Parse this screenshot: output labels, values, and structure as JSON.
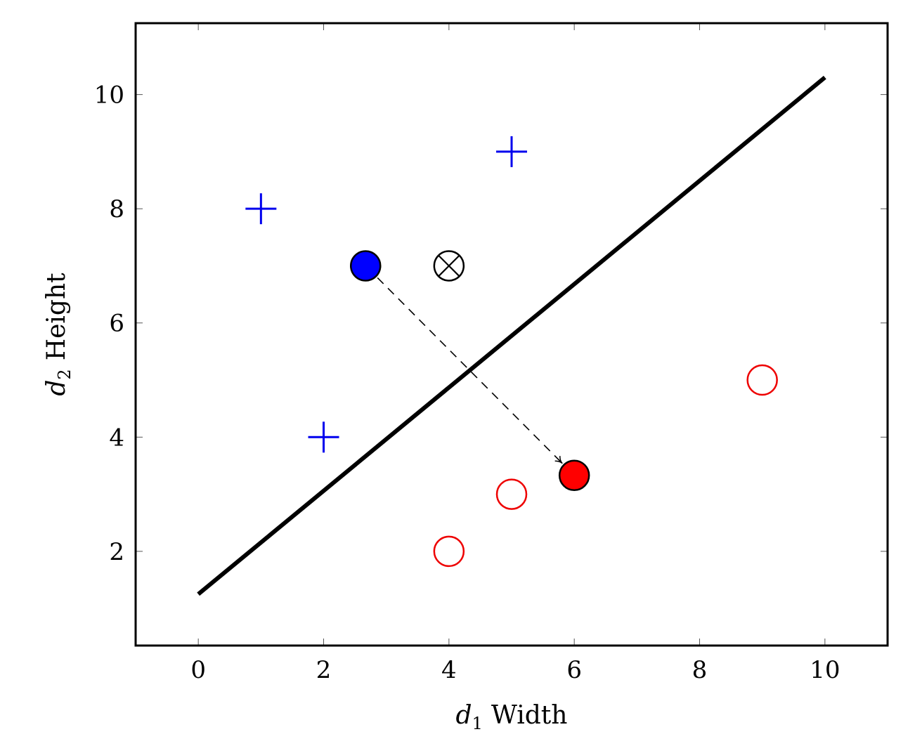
{
  "chart_data": {
    "type": "scatter",
    "title": "",
    "xlabel": {
      "symbol": "d",
      "subscript": "1",
      "text": "Width"
    },
    "ylabel": {
      "symbol": "d",
      "subscript": "2",
      "text": "Height"
    },
    "xlim": [
      -1,
      11
    ],
    "ylim": [
      0.35,
      11.25
    ],
    "xticks": [
      0,
      2,
      4,
      6,
      8,
      10
    ],
    "yticks": [
      2,
      4,
      6,
      8,
      10
    ],
    "grid": false,
    "legend": "none",
    "series": [
      {
        "marker": "plus",
        "color": "#0000ee",
        "points": [
          {
            "x": 1,
            "y": 8
          },
          {
            "x": 2,
            "y": 4
          },
          {
            "x": 5,
            "y": 9
          }
        ]
      },
      {
        "marker": "open-circle",
        "color": "#ee0000",
        "points": [
          {
            "x": 4,
            "y": 2
          },
          {
            "x": 5,
            "y": 3
          },
          {
            "x": 9,
            "y": 5
          }
        ]
      },
      {
        "marker": "filled-circle",
        "color": "#0000ff",
        "points": [
          {
            "x": 2.67,
            "y": 7
          }
        ]
      },
      {
        "marker": "filled-circle",
        "color": "#ff0000",
        "points": [
          {
            "x": 6,
            "y": 3.33
          }
        ]
      },
      {
        "marker": "circle-times",
        "color": "#000000",
        "points": [
          {
            "x": 4,
            "y": 7
          }
        ]
      }
    ],
    "decision_line": {
      "from": {
        "x": 0,
        "y": 1.25
      },
      "to": {
        "x": 10,
        "y": 10.3
      },
      "color": "#000000"
    },
    "arrow": {
      "from": {
        "x": 2.67,
        "y": 7
      },
      "to": {
        "x": 6,
        "y": 3.33
      },
      "style": "dashed",
      "color": "#000000"
    }
  }
}
